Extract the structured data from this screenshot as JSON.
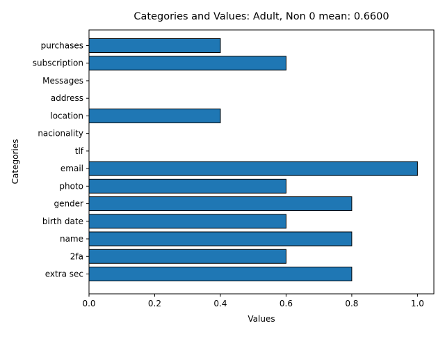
{
  "chart_data": {
    "type": "bar",
    "orientation": "horizontal",
    "title": "Categories and Values: Adult, Non 0 mean: 0.6600",
    "xlabel": "Values",
    "ylabel": "Categories",
    "xlim": [
      0,
      1.05
    ],
    "xticks": [
      0.0,
      0.2,
      0.4,
      0.6,
      0.8,
      1.0
    ],
    "xtick_labels": [
      "0.0",
      "0.2",
      "0.4",
      "0.6",
      "0.8",
      "1.0"
    ],
    "grid": false,
    "bar_color": "#1f77b4",
    "edge_color": "#000000",
    "categories": [
      "extra sec",
      "2fa",
      "name",
      "birth date",
      "gender",
      "photo",
      "email",
      "tlf",
      "nacionality",
      "location",
      "address",
      "Messages",
      "subscription",
      "purchases"
    ],
    "values": [
      0.8,
      0.6,
      0.8,
      0.6,
      0.8,
      0.6,
      1.0,
      0.0,
      0.0,
      0.4,
      0.0,
      0.0,
      0.6,
      0.4
    ]
  }
}
